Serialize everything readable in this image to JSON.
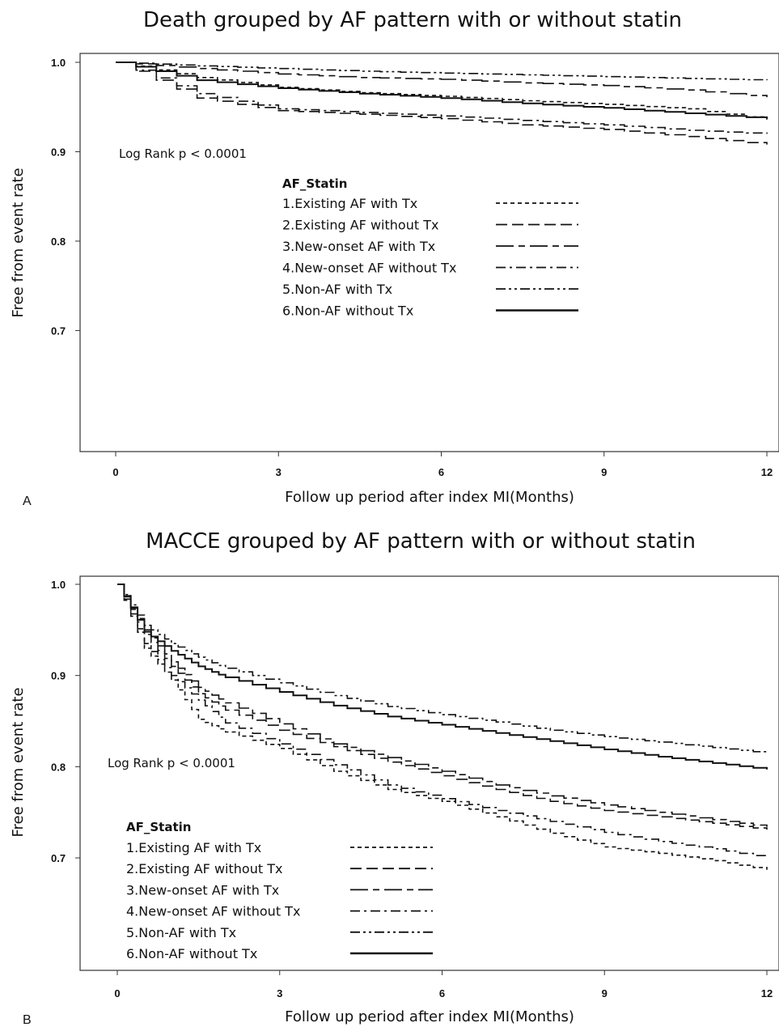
{
  "chart_data": [
    {
      "type": "line",
      "panel": "A",
      "title": "Death grouped by AF pattern with or without statin",
      "xlabel": "Follow up period after index MI(Months)",
      "ylabel": "Free from event rate",
      "xlim": [
        0,
        12
      ],
      "ylim": [
        0.58,
        1.0
      ],
      "x_ticks": [
        0,
        3,
        6,
        9,
        12
      ],
      "x_tick_labels": [
        "0",
        "3",
        "6",
        "9",
        "12"
      ],
      "y_ticks": [
        1.0,
        0.9,
        0.8,
        0.7
      ],
      "y_tick_labels": [
        "1.0",
        "0.9",
        "0.8",
        "0.7"
      ],
      "annotation": "Log Rank p < 0.0001",
      "legend_title": "AF_Statin",
      "legend_position": "upper-middle",
      "series": [
        {
          "name": "1.Existing AF with Tx",
          "dash": "short",
          "x": [
            0,
            1.5,
            3,
            4.5,
            6,
            7.5,
            9,
            10.5,
            12
          ],
          "y": [
            1.0,
            0.983,
            0.972,
            0.966,
            0.962,
            0.957,
            0.953,
            0.948,
            0.936
          ]
        },
        {
          "name": "2.Existing AF without Tx",
          "dash": "long",
          "x": [
            0,
            1.5,
            3,
            4.5,
            6,
            7.5,
            9,
            10.5,
            12
          ],
          "y": [
            1.0,
            0.96,
            0.946,
            0.942,
            0.937,
            0.93,
            0.925,
            0.917,
            0.908
          ]
        },
        {
          "name": "3.New-onset AF with Tx",
          "dash": "longdash",
          "x": [
            0,
            1.5,
            3,
            4.5,
            6,
            7.5,
            9,
            10.5,
            12
          ],
          "y": [
            1.0,
            0.993,
            0.987,
            0.983,
            0.981,
            0.977,
            0.974,
            0.969,
            0.961
          ]
        },
        {
          "name": "4.New-onset AF without Tx",
          "dash": "dashdot",
          "x": [
            0,
            1.5,
            3,
            4.5,
            6,
            7.5,
            9,
            10.5,
            12
          ],
          "y": [
            1.0,
            0.965,
            0.948,
            0.944,
            0.94,
            0.935,
            0.93,
            0.924,
            0.92
          ]
        },
        {
          "name": "5.Non-AF with Tx",
          "dash": "dashdotdot",
          "x": [
            0,
            1.5,
            3,
            4.5,
            6,
            7.5,
            9,
            10.5,
            12
          ],
          "y": [
            1.0,
            0.996,
            0.993,
            0.99,
            0.988,
            0.986,
            0.984,
            0.982,
            0.98
          ]
        },
        {
          "name": "6.Non-AF without Tx",
          "dash": "solid",
          "x": [
            0,
            1.5,
            3,
            4.5,
            6,
            7.5,
            9,
            10.5,
            12
          ],
          "y": [
            1.0,
            0.98,
            0.971,
            0.965,
            0.96,
            0.954,
            0.949,
            0.943,
            0.937
          ]
        }
      ]
    },
    {
      "type": "line",
      "panel": "B",
      "title": "MACCE grouped by AF pattern with or without statin",
      "xlabel": "Follow up period after index MI(Months)",
      "ylabel": "Free from event rate",
      "xlim": [
        0,
        12
      ],
      "ylim": [
        0.59,
        1.0
      ],
      "x_ticks": [
        0,
        3,
        6,
        9,
        12
      ],
      "x_tick_labels": [
        "0",
        "3",
        "6",
        "9",
        "12"
      ],
      "y_ticks": [
        1.0,
        0.9,
        0.8,
        0.7
      ],
      "y_tick_labels": [
        "1.0",
        "0.9",
        "0.8",
        "0.7"
      ],
      "annotation": "Log Rank p < 0.0001",
      "legend_title": "AF_Statin",
      "legend_position": "lower-left",
      "series": [
        {
          "name": "1.Existing AF with Tx",
          "dash": "short",
          "x": [
            0,
            0.5,
            1,
            1.5,
            2,
            3,
            4,
            5,
            6,
            7,
            8,
            9,
            10,
            11,
            12
          ],
          "y": [
            1.0,
            0.93,
            0.895,
            0.852,
            0.838,
            0.82,
            0.795,
            0.775,
            0.762,
            0.745,
            0.727,
            0.712,
            0.705,
            0.697,
            0.687
          ]
        },
        {
          "name": "2.Existing AF without Tx",
          "dash": "long",
          "x": [
            0,
            0.5,
            1,
            1.5,
            2,
            3,
            4,
            5,
            6,
            7,
            8,
            9,
            10,
            11,
            12
          ],
          "y": [
            1.0,
            0.945,
            0.91,
            0.88,
            0.862,
            0.84,
            0.822,
            0.805,
            0.79,
            0.775,
            0.762,
            0.752,
            0.745,
            0.738,
            0.731
          ]
        },
        {
          "name": "3.New-onset AF with Tx",
          "dash": "longdash",
          "x": [
            0,
            0.5,
            1,
            1.5,
            2,
            3,
            4,
            5,
            6,
            7,
            8,
            9,
            10,
            11,
            12
          ],
          "y": [
            1.0,
            0.95,
            0.915,
            0.887,
            0.87,
            0.847,
            0.825,
            0.81,
            0.795,
            0.78,
            0.768,
            0.758,
            0.75,
            0.742,
            0.734
          ]
        },
        {
          "name": "4.New-onset AF without Tx",
          "dash": "dashdot",
          "x": [
            0,
            0.5,
            1,
            1.5,
            2,
            3,
            4,
            5,
            6,
            7,
            8,
            9,
            10,
            11,
            12
          ],
          "y": [
            1.0,
            0.935,
            0.9,
            0.873,
            0.848,
            0.825,
            0.802,
            0.78,
            0.765,
            0.752,
            0.74,
            0.728,
            0.718,
            0.71,
            0.7
          ]
        },
        {
          "name": "5.Non-AF with Tx",
          "dash": "dashdotdot",
          "x": [
            0,
            0.5,
            1,
            1.5,
            2,
            3,
            4,
            5,
            6,
            7,
            8,
            9,
            10,
            11,
            12
          ],
          "y": [
            1.0,
            0.955,
            0.935,
            0.92,
            0.908,
            0.892,
            0.878,
            0.866,
            0.857,
            0.849,
            0.84,
            0.833,
            0.827,
            0.821,
            0.815
          ]
        },
        {
          "name": "6.Non-AF without Tx",
          "dash": "solid",
          "x": [
            0,
            0.5,
            1,
            1.5,
            2,
            3,
            4,
            5,
            6,
            7,
            8,
            9,
            10,
            11,
            12
          ],
          "y": [
            1.0,
            0.948,
            0.927,
            0.91,
            0.898,
            0.882,
            0.867,
            0.855,
            0.846,
            0.837,
            0.828,
            0.819,
            0.811,
            0.804,
            0.797
          ]
        }
      ]
    }
  ]
}
